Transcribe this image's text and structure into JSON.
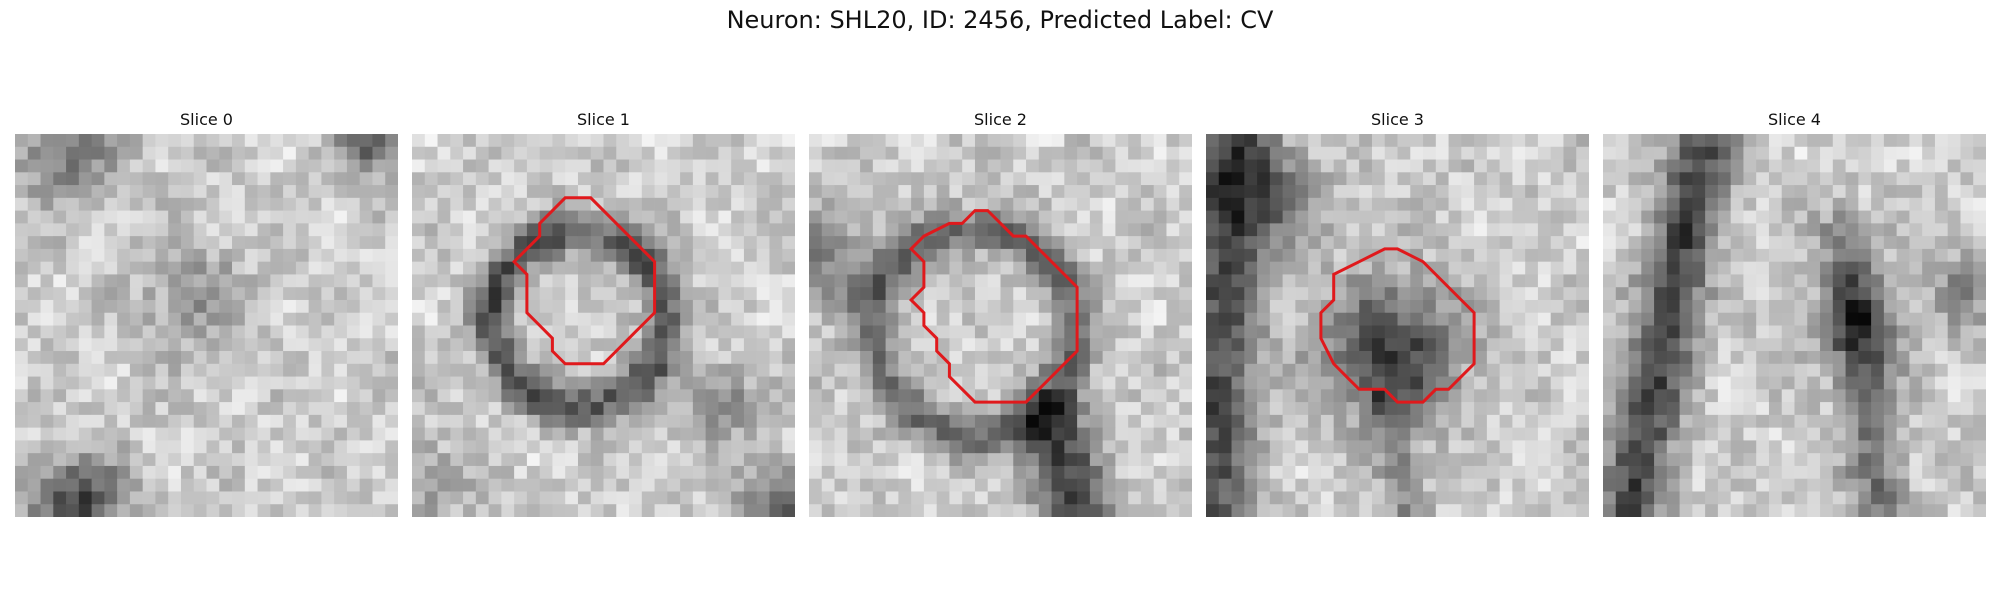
{
  "figure": {
    "title": "Neuron: SHL20, ID: 2456, Predicted Label: CV"
  },
  "colors": {
    "contour": "#e0191c",
    "background": "#ffffff"
  },
  "slices": [
    {
      "title": "Slice 0",
      "has_contour": false
    },
    {
      "title": "Slice 1",
      "has_contour": true
    },
    {
      "title": "Slice 2",
      "has_contour": true
    },
    {
      "title": "Slice 3",
      "has_contour": true
    },
    {
      "title": "Slice 4",
      "has_contour": false
    }
  ]
}
